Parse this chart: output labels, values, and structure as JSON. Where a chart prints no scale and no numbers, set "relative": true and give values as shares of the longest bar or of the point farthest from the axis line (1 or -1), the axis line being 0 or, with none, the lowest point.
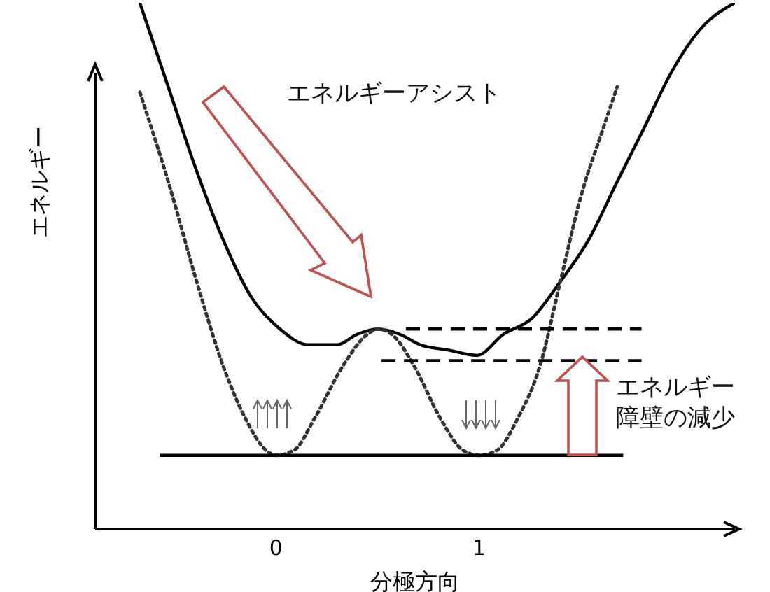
{
  "chart_data": {
    "type": "line",
    "relative": true,
    "xlabel": "分極方向",
    "ylabel": "エネルギー",
    "xlim": [
      -0.89,
      2.26
    ],
    "xticks": [
      0,
      1
    ],
    "tick_labels": "x",
    "marker": "none",
    "annotations": [
      "エネルギーアシスト",
      "エネルギー",
      "障壁の減少"
    ],
    "series": [
      {
        "color": "#000000",
        "line_style": "solid",
        "x": [
          -0.67,
          -0.53,
          -0.39,
          -0.26,
          -0.12,
          0.02,
          0.16,
          0.3,
          0.4,
          0.5,
          0.61,
          0.71,
          0.85,
          0.99,
          1.12,
          1.26,
          1.4,
          1.54,
          1.68,
          1.81,
          1.95,
          2.09,
          2.26
        ],
        "values": [
          1.0,
          0.84,
          0.68,
          0.55,
          0.44,
          0.38,
          0.35,
          0.35,
          0.37,
          0.38,
          0.37,
          0.35,
          0.34,
          0.33,
          0.37,
          0.4,
          0.47,
          0.55,
          0.66,
          0.76,
          0.87,
          0.95,
          1.0
        ]
      },
      {
        "color": "#333333",
        "line_style": "dotted",
        "x": [
          -0.67,
          -0.53,
          -0.39,
          -0.26,
          -0.15,
          -0.05,
          0,
          0.09,
          0.19,
          0.33,
          0.45,
          0.5,
          0.57,
          0.68,
          0.81,
          0.92,
          1.0,
          1.09,
          1.19,
          1.3,
          1.4,
          1.5,
          1.61,
          1.68
        ],
        "values": [
          0.83,
          0.66,
          0.47,
          0.31,
          0.21,
          0.15,
          0.14,
          0.15,
          0.21,
          0.31,
          0.37,
          0.38,
          0.37,
          0.31,
          0.21,
          0.15,
          0.14,
          0.15,
          0.21,
          0.31,
          0.47,
          0.63,
          0.76,
          0.84
        ]
      },
      {
        "color": "#000000",
        "line_style": "solid",
        "x": [
          -0.57,
          1.71
        ],
        "values": [
          0.14,
          0.14
        ]
      },
      {
        "color": "#000000",
        "line_style": "dashed",
        "x": [
          0.64,
          1.8
        ],
        "values": [
          0.38,
          0.38
        ]
      },
      {
        "color": "#000000",
        "line_style": "dashed",
        "x": [
          0.52,
          1.8
        ],
        "values": [
          0.32,
          0.32
        ]
      }
    ]
  }
}
